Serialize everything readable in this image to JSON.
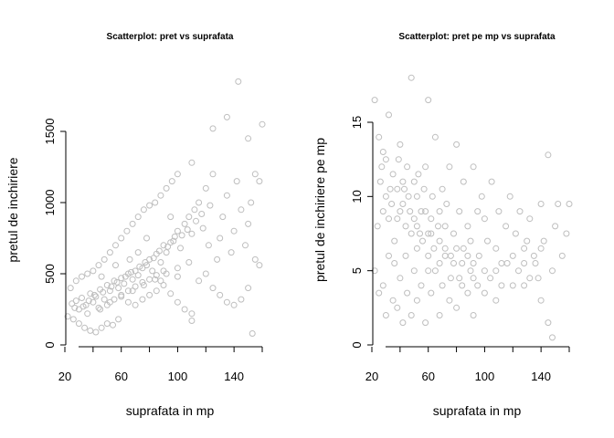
{
  "colors": {
    "points": "#bebebe",
    "axis": "#000000"
  },
  "chart_data": [
    {
      "type": "scatter",
      "title": "Scatterplot: pret vs suprafata",
      "xlabel": "suprafata in mp",
      "ylabel": "pretul de inchiriere",
      "xlim": [
        20,
        160
      ],
      "ylim": [
        0,
        1600
      ],
      "x_ticks": [
        "20",
        "60",
        "100",
        "140"
      ],
      "y_ticks": [
        "0",
        "500",
        "1000",
        "1500"
      ],
      "grid": false,
      "legend": "none",
      "points": [
        [
          25,
          290
        ],
        [
          28,
          310
        ],
        [
          30,
          250
        ],
        [
          32,
          330
        ],
        [
          35,
          280
        ],
        [
          38,
          360
        ],
        [
          40,
          300
        ],
        [
          42,
          340
        ],
        [
          45,
          390
        ],
        [
          48,
          320
        ],
        [
          50,
          420
        ],
        [
          52,
          380
        ],
        [
          55,
          450
        ],
        [
          58,
          400
        ],
        [
          60,
          470
        ],
        [
          62,
          430
        ],
        [
          65,
          500
        ],
        [
          68,
          460
        ],
        [
          70,
          520
        ],
        [
          72,
          490
        ],
        [
          75,
          540
        ],
        [
          78,
          560
        ],
        [
          80,
          600
        ],
        [
          82,
          520
        ],
        [
          85,
          640
        ],
        [
          88,
          580
        ],
        [
          90,
          700
        ],
        [
          92,
          650
        ],
        [
          95,
          720
        ],
        [
          98,
          760
        ],
        [
          100,
          800
        ],
        [
          102,
          680
        ],
        [
          105,
          850
        ],
        [
          108,
          900
        ],
        [
          110,
          780
        ],
        [
          112,
          950
        ],
        [
          115,
          1000
        ],
        [
          118,
          820
        ],
        [
          120,
          1100
        ],
        [
          122,
          700
        ],
        [
          125,
          1200
        ],
        [
          128,
          600
        ],
        [
          130,
          750
        ],
        [
          132,
          900
        ],
        [
          135,
          1050
        ],
        [
          138,
          650
        ],
        [
          140,
          800
        ],
        [
          142,
          1150
        ],
        [
          145,
          950
        ],
        [
          148,
          700
        ],
        [
          150,
          850
        ],
        [
          152,
          1000
        ],
        [
          155,
          1200
        ],
        [
          158,
          1150
        ],
        [
          160,
          1550
        ],
        [
          143,
          1850
        ],
        [
          125,
          1520
        ],
        [
          150,
          1450
        ],
        [
          135,
          1600
        ],
        [
          110,
          1280
        ],
        [
          22,
          200
        ],
        [
          26,
          180
        ],
        [
          30,
          150
        ],
        [
          34,
          120
        ],
        [
          38,
          100
        ],
        [
          42,
          90
        ],
        [
          46,
          120
        ],
        [
          50,
          150
        ],
        [
          54,
          140
        ],
        [
          58,
          180
        ],
        [
          24,
          400
        ],
        [
          28,
          450
        ],
        [
          32,
          480
        ],
        [
          36,
          500
        ],
        [
          40,
          520
        ],
        [
          44,
          560
        ],
        [
          48,
          600
        ],
        [
          52,
          650
        ],
        [
          56,
          700
        ],
        [
          60,
          750
        ],
        [
          64,
          800
        ],
        [
          68,
          850
        ],
        [
          72,
          900
        ],
        [
          76,
          950
        ],
        [
          80,
          980
        ],
        [
          84,
          1000
        ],
        [
          88,
          1050
        ],
        [
          92,
          1100
        ],
        [
          96,
          1150
        ],
        [
          100,
          1200
        ],
        [
          65,
          300
        ],
        [
          70,
          280
        ],
        [
          75,
          320
        ],
        [
          80,
          350
        ],
        [
          85,
          380
        ],
        [
          90,
          420
        ],
        [
          95,
          360
        ],
        [
          100,
          300
        ],
        [
          105,
          250
        ],
        [
          110,
          220
        ],
        [
          115,
          450
        ],
        [
          120,
          500
        ],
        [
          125,
          400
        ],
        [
          130,
          350
        ],
        [
          135,
          300
        ],
        [
          140,
          280
        ],
        [
          145,
          320
        ],
        [
          150,
          400
        ],
        [
          155,
          600
        ],
        [
          158,
          560
        ],
        [
          27,
          260
        ],
        [
          33,
          270
        ],
        [
          37,
          310
        ],
        [
          41,
          350
        ],
        [
          47,
          370
        ],
        [
          53,
          410
        ],
        [
          57,
          440
        ],
        [
          63,
          480
        ],
        [
          67,
          510
        ],
        [
          73,
          550
        ],
        [
          77,
          580
        ],
        [
          83,
          610
        ],
        [
          87,
          660
        ],
        [
          93,
          690
        ],
        [
          97,
          730
        ],
        [
          103,
          770
        ],
        [
          107,
          810
        ],
        [
          113,
          870
        ],
        [
          117,
          920
        ],
        [
          123,
          980
        ],
        [
          45,
          250
        ],
        [
          50,
          280
        ],
        [
          55,
          320
        ],
        [
          60,
          350
        ],
        [
          65,
          380
        ],
        [
          70,
          410
        ],
        [
          75,
          440
        ],
        [
          80,
          460
        ],
        [
          85,
          490
        ],
        [
          90,
          520
        ],
        [
          36,
          220
        ],
        [
          44,
          260
        ],
        [
          52,
          300
        ],
        [
          60,
          340
        ],
        [
          68,
          380
        ],
        [
          76,
          420
        ],
        [
          84,
          460
        ],
        [
          92,
          500
        ],
        [
          100,
          540
        ],
        [
          108,
          580
        ],
        [
          153,
          80
        ],
        [
          110,
          170
        ],
        [
          100,
          480
        ],
        [
          95,
          900
        ],
        [
          88,
          450
        ],
        [
          78,
          750
        ],
        [
          72,
          650
        ],
        [
          66,
          600
        ],
        [
          56,
          560
        ],
        [
          46,
          480
        ]
      ]
    },
    {
      "type": "scatter",
      "title": "Scatterplot: pret pe mp vs suprafata",
      "xlabel": "suprafata in mp",
      "ylabel": "pretul de inchiriere pe mp",
      "xlim": [
        20,
        160
      ],
      "ylim": [
        0,
        18
      ],
      "x_ticks": [
        "20",
        "60",
        "100",
        "140"
      ],
      "y_ticks": [
        "0",
        "5",
        "10",
        "15"
      ],
      "grid": false,
      "legend": "none",
      "points": [
        [
          22,
          16.5
        ],
        [
          25,
          14
        ],
        [
          28,
          13
        ],
        [
          30,
          12.5
        ],
        [
          32,
          15.5
        ],
        [
          35,
          11.5
        ],
        [
          38,
          10.5
        ],
        [
          40,
          13.5
        ],
        [
          42,
          9.5
        ],
        [
          45,
          12
        ],
        [
          48,
          18
        ],
        [
          50,
          11
        ],
        [
          52,
          10
        ],
        [
          55,
          9
        ],
        [
          58,
          12
        ],
        [
          60,
          16.5
        ],
        [
          62,
          8.5
        ],
        [
          65,
          14
        ],
        [
          68,
          9
        ],
        [
          70,
          10.5
        ],
        [
          72,
          8
        ],
        [
          75,
          12
        ],
        [
          78,
          7.5
        ],
        [
          80,
          13.5
        ],
        [
          82,
          9
        ],
        [
          85,
          11
        ],
        [
          88,
          8
        ],
        [
          90,
          7
        ],
        [
          92,
          12
        ],
        [
          95,
          9
        ],
        [
          98,
          10
        ],
        [
          100,
          8.5
        ],
        [
          102,
          7
        ],
        [
          105,
          11
        ],
        [
          108,
          6.5
        ],
        [
          110,
          9
        ],
        [
          112,
          5.5
        ],
        [
          115,
          8
        ],
        [
          118,
          10
        ],
        [
          120,
          6
        ],
        [
          122,
          7.5
        ],
        [
          125,
          9
        ],
        [
          128,
          5.5
        ],
        [
          130,
          7
        ],
        [
          132,
          8.5
        ],
        [
          135,
          6
        ],
        [
          138,
          4.5
        ],
        [
          140,
          9.5
        ],
        [
          142,
          7
        ],
        [
          145,
          12.8
        ],
        [
          148,
          5
        ],
        [
          150,
          8
        ],
        [
          152,
          9.5
        ],
        [
          155,
          6
        ],
        [
          158,
          7.5
        ],
        [
          160,
          9.5
        ],
        [
          145,
          1.5
        ],
        [
          148,
          0.5
        ],
        [
          140,
          3
        ],
        [
          128,
          4
        ],
        [
          22,
          5
        ],
        [
          25,
          3.5
        ],
        [
          28,
          4
        ],
        [
          30,
          2
        ],
        [
          32,
          6
        ],
        [
          35,
          3
        ],
        [
          38,
          2.5
        ],
        [
          40,
          4.5
        ],
        [
          42,
          1.5
        ],
        [
          45,
          3.5
        ],
        [
          48,
          2
        ],
        [
          50,
          5
        ],
        [
          52,
          3
        ],
        [
          55,
          4
        ],
        [
          58,
          1.5
        ],
        [
          60,
          6
        ],
        [
          62,
          3.5
        ],
        [
          65,
          5
        ],
        [
          68,
          2
        ],
        [
          70,
          4
        ],
        [
          72,
          6
        ],
        [
          75,
          3
        ],
        [
          78,
          5.5
        ],
        [
          80,
          2.5
        ],
        [
          82,
          4.5
        ],
        [
          85,
          6.5
        ],
        [
          88,
          3.5
        ],
        [
          90,
          5
        ],
        [
          92,
          2
        ],
        [
          95,
          4
        ],
        [
          24,
          8
        ],
        [
          28,
          9
        ],
        [
          32,
          8.5
        ],
        [
          36,
          7
        ],
        [
          40,
          9
        ],
        [
          44,
          8
        ],
        [
          48,
          7.5
        ],
        [
          52,
          8
        ],
        [
          56,
          7
        ],
        [
          60,
          7.5
        ],
        [
          64,
          6.5
        ],
        [
          68,
          7
        ],
        [
          72,
          6.5
        ],
        [
          76,
          6
        ],
        [
          80,
          6.5
        ],
        [
          84,
          5.5
        ],
        [
          88,
          6
        ],
        [
          92,
          5.5
        ],
        [
          96,
          6
        ],
        [
          100,
          5
        ],
        [
          26,
          11
        ],
        [
          30,
          10
        ],
        [
          34,
          9.5
        ],
        [
          38,
          8.5
        ],
        [
          42,
          11
        ],
        [
          46,
          10
        ],
        [
          50,
          8.5
        ],
        [
          54,
          7.5
        ],
        [
          58,
          9
        ],
        [
          62,
          7.5
        ],
        [
          104,
          4.5
        ],
        [
          108,
          5
        ],
        [
          112,
          4
        ],
        [
          116,
          5.5
        ],
        [
          120,
          4
        ],
        [
          124,
          5
        ],
        [
          128,
          6.5
        ],
        [
          132,
          4.5
        ],
        [
          136,
          5.5
        ],
        [
          140,
          6.5
        ],
        [
          36,
          5.5
        ],
        [
          44,
          6
        ],
        [
          52,
          6.5
        ],
        [
          60,
          5
        ],
        [
          68,
          5.5
        ],
        [
          76,
          4.5
        ],
        [
          84,
          4
        ],
        [
          92,
          4.5
        ],
        [
          100,
          3.5
        ],
        [
          108,
          3
        ],
        [
          27,
          12
        ],
        [
          33,
          10.5
        ],
        [
          39,
          12.5
        ],
        [
          43,
          10.5
        ],
        [
          47,
          9
        ],
        [
          53,
          11.5
        ],
        [
          57,
          10.5
        ],
        [
          63,
          10
        ],
        [
          67,
          8
        ],
        [
          73,
          9.5
        ]
      ]
    }
  ]
}
